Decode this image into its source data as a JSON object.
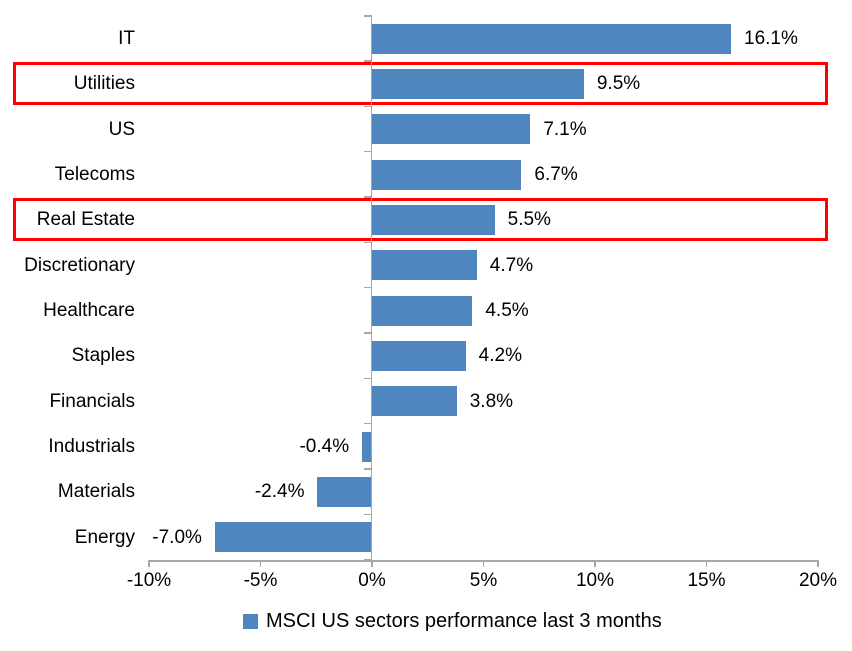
{
  "chart_data": {
    "type": "bar",
    "orientation": "horizontal",
    "title": "",
    "xlabel": "",
    "ylabel": "",
    "categories": [
      "IT",
      "Utilities",
      "US",
      "Telecoms",
      "Real Estate",
      "Discretionary",
      "Healthcare",
      "Staples",
      "Financials",
      "Industrials",
      "Materials",
      "Energy"
    ],
    "values": [
      16.1,
      9.5,
      7.1,
      6.7,
      5.5,
      4.7,
      4.5,
      4.2,
      3.8,
      -0.4,
      -2.4,
      -7.0
    ],
    "data_labels": [
      "16.1%",
      "9.5%",
      "7.1%",
      "6.7%",
      "5.5%",
      "4.7%",
      "4.5%",
      "4.2%",
      "3.8%",
      "-0.4%",
      "-2.4%",
      "-7.0%"
    ],
    "highlighted_categories": [
      "Utilities",
      "Real Estate"
    ],
    "x_ticks": [
      "-10%",
      "-5%",
      "0%",
      "5%",
      "10%",
      "15%",
      "20%"
    ],
    "x_tick_values": [
      -10,
      -5,
      0,
      5,
      10,
      15,
      20
    ],
    "xlim": [
      -10,
      20
    ],
    "grid": false,
    "legend_position": "bottom",
    "legend": "MSCI US sectors performance last 3 months",
    "colors": {
      "bar": "#4f86bd",
      "highlight_border": "#ff0000",
      "axis": "#a6a6a6",
      "text": "#000000",
      "background": "#ffffff"
    }
  }
}
